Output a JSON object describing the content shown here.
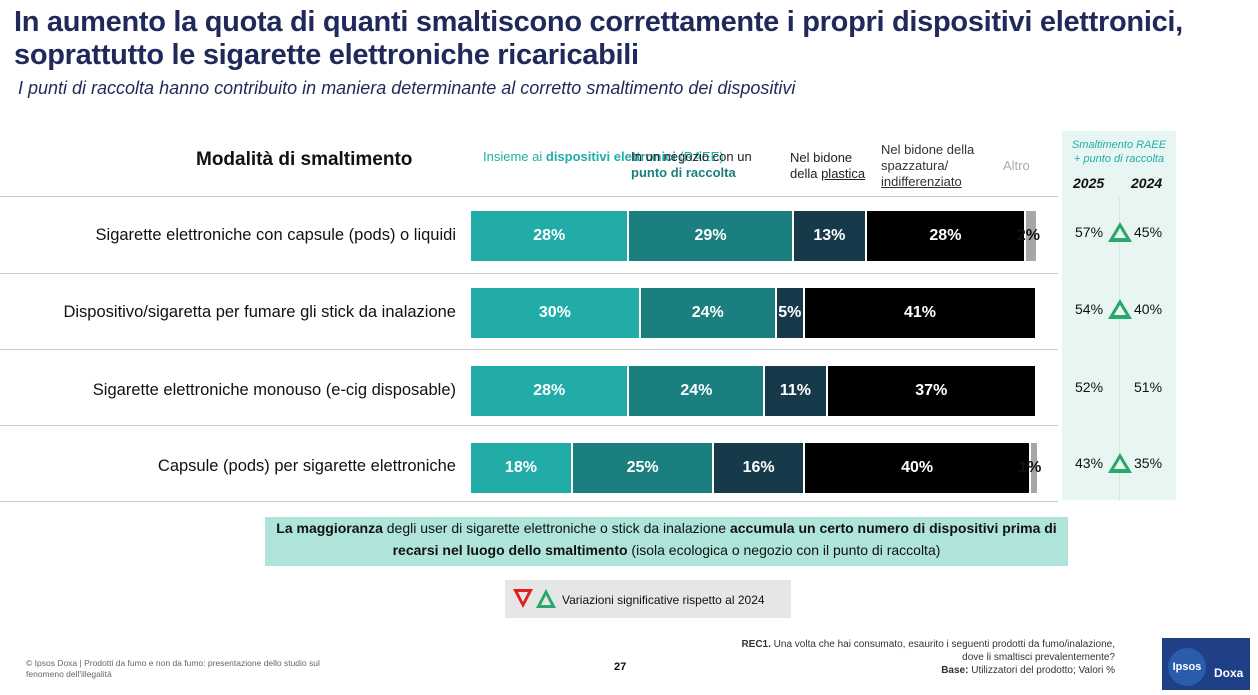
{
  "header": {
    "title": "In aumento la quota di quanti smaltiscono correttamente i propri dispositivi elettronici, soprattutto le sigarette elettroniche ricaricabili",
    "subtitle": "I punti di raccolta hanno contribuito in maniera determinante al corretto smaltimento dei dispositivi"
  },
  "columns": {
    "modalita": "Modalità di smaltimento",
    "raee_pre": "Insieme ai ",
    "raee_bold": "dispositivi elettronici",
    "raee_post": " (RAEE)",
    "negozio_pre": "In un negozio con un",
    "negozio_bold": "punto di raccolta",
    "plastica_pre": "Nel bidone",
    "plastica_mid": "della ",
    "plastica_u": "plastica",
    "spazz_pre": "Nel bidone della",
    "spazz_mid": "spazzatura/",
    "spazz_u": "indifferenziato",
    "altro": "Altro"
  },
  "panel": {
    "title_line1": "Smaltimento RAEE",
    "title_line2": "+ punto di raccolta",
    "year_2025": "2025",
    "year_2024": "2024"
  },
  "colors": {
    "raee": "#21aca8",
    "negozio": "#1a7f7e",
    "plastica": "#173a4a",
    "spazzatura": "#000000",
    "altro": "#a6a6a6",
    "increase": "#2aa86b",
    "decrease": "#e0201f"
  },
  "chart_data": {
    "type": "bar",
    "stacked": true,
    "orientation": "horizontal",
    "categories": [
      "Sigarette elettroniche con capsule (pods) o liquidi",
      "Dispositivo/sigaretta per fumare gli stick da inalazione",
      "Sigarette elettroniche monouso (e-cig disposable)",
      "Capsule (pods) per sigarette elettroniche"
    ],
    "series": [
      {
        "name": "Insieme ai dispositivi elettronici (RAEE)",
        "values": [
          28,
          30,
          28,
          18
        ],
        "labels": [
          "28%",
          "30%",
          "28%",
          "18%"
        ]
      },
      {
        "name": "In un negozio con un punto di raccolta",
        "values": [
          29,
          24,
          24,
          25
        ],
        "labels": [
          "29%",
          "24%",
          "24%",
          "25%"
        ]
      },
      {
        "name": "Nel bidone della plastica",
        "values": [
          13,
          5,
          11,
          16
        ],
        "labels": [
          "13%",
          "5%",
          "11%",
          "16%"
        ]
      },
      {
        "name": "Nel bidone della spazzatura/indifferenziato",
        "values": [
          28,
          41,
          37,
          40
        ],
        "labels": [
          "28%",
          "41%",
          "37%",
          "40%"
        ]
      },
      {
        "name": "Altro",
        "values": [
          2,
          0,
          0,
          1
        ],
        "labels": [
          "2%",
          "",
          "",
          "1%"
        ]
      }
    ],
    "raee_plus_raccolta": {
      "2025": [
        "57%",
        "54%",
        "52%",
        "43%"
      ],
      "2024": [
        "45%",
        "40%",
        "51%",
        "35%"
      ],
      "significant_increase": [
        true,
        true,
        false,
        true
      ]
    }
  },
  "note": {
    "b1": "La maggioranza",
    "t1": " degli user di sigarette elettroniche o stick da inalazione ",
    "b2": "accumula un certo numero di dispositivi prima di recarsi nel luogo dello smaltimento",
    "t2": " (isola ecologica o negozio con il punto di raccolta)"
  },
  "legend": {
    "text": "Variazioni significative rispetto al 2024"
  },
  "footer": {
    "left": "© Ipsos Doxa | Prodotti da fumo e non da fumo: presentazione dello studio sul fenomeno dell'illegalità",
    "page": "27",
    "rec_label": "REC1.",
    "rec_text": " Una volta che hai consumato, esaurito i seguenti prodotti da fumo/inalazione, dove li smaltisci prevalentemente?",
    "base_label": "Base:",
    "base_text": " Utilizzatori del prodotto; Valori %",
    "logo_ipsos": "Ipsos",
    "logo_doxa": "Doxa"
  }
}
